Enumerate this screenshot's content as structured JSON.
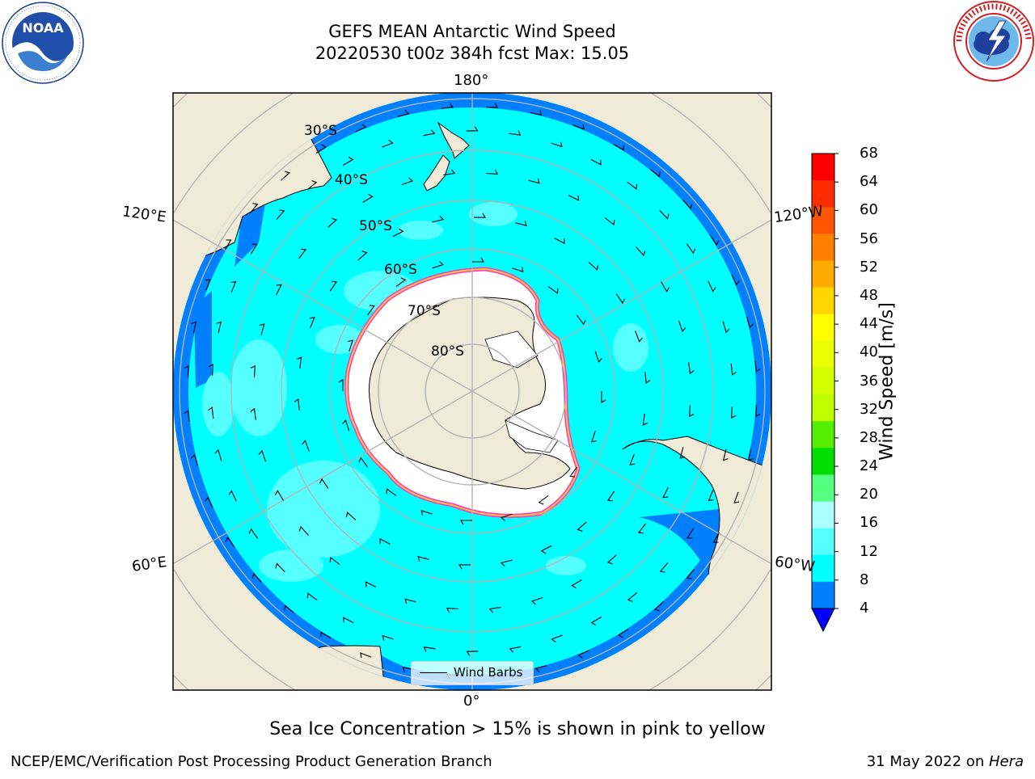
{
  "title": {
    "line1": "GEFS MEAN Antarctic Wind Speed",
    "line2": "20220530 t00z 384h fcst   Max: 15.05"
  },
  "map": {
    "projection": "south-polar-stereographic",
    "longitude_labels": {
      "top": "180°",
      "bottom": "0°",
      "left_upper": "120°E",
      "left_lower": "60°E",
      "right_upper": "120°W",
      "right_lower": "60°W"
    },
    "latitude_labels": [
      "30°S",
      "40°S",
      "50°S",
      "60°S",
      "70°S",
      "80°S"
    ],
    "legend_label": "Wind Barbs",
    "colors": {
      "ocean_base": "#00ffff",
      "ocean_light": "#56ffff",
      "ocean_calm": "#0080ff",
      "land": "#efebd8",
      "sea_ice": "#ffffff",
      "ice_edge_pink": "#ff33cc",
      "ice_edge_yellow": "#ffcc33",
      "grid": "#b4b4b4"
    }
  },
  "colorbar": {
    "title": "Wind Speed [m/s]",
    "ticks": [
      "68",
      "64",
      "60",
      "56",
      "52",
      "48",
      "44",
      "40",
      "36",
      "32",
      "28",
      "24",
      "20",
      "16",
      "12",
      "8",
      "4"
    ],
    "colors_top_to_bottom": [
      "#ff0000",
      "#ff2b00",
      "#ff5500",
      "#ff8000",
      "#ffaa00",
      "#ffd400",
      "#ffff00",
      "#eaff00",
      "#d4ff00",
      "#bfff00",
      "#55ee00",
      "#00dd00",
      "#55ff80",
      "#aaffff",
      "#55ffff",
      "#00ffff",
      "#0080ff"
    ],
    "under_color": "#0000ff"
  },
  "note": "Sea Ice Concentration > 15% is shown in pink to yellow",
  "footer": {
    "left": "NCEP/EMC/Verification Post Processing Product Generation Branch",
    "date": "31 May 2022 on ",
    "machine": "Hera"
  },
  "logos": {
    "left": "noaa-logo",
    "right": "nws-logo"
  }
}
